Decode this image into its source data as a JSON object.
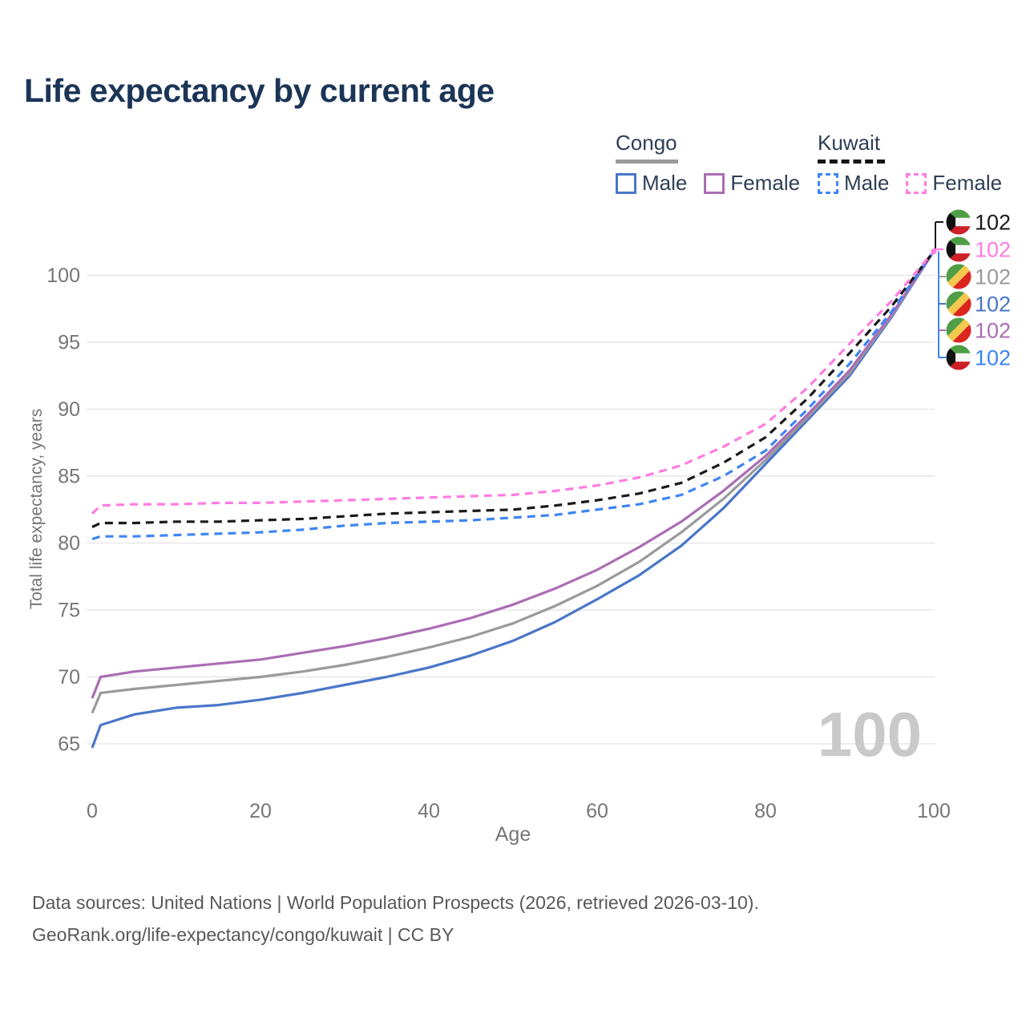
{
  "title": "Life expectancy by current age",
  "legend": {
    "groups": [
      {
        "name": "Congo",
        "line_style": "solid",
        "items": [
          {
            "label": "Male",
            "series": "congo_male",
            "color": "#4a76c9"
          },
          {
            "label": "Female",
            "series": "congo_female",
            "color": "#ab6db4"
          }
        ]
      },
      {
        "name": "Kuwait",
        "line_style": "dashed",
        "items": [
          {
            "label": "Male",
            "series": "kuwait_male",
            "color": "#3d85f4"
          },
          {
            "label": "Female",
            "series": "kuwait_female",
            "color": "#ff7ce0"
          }
        ]
      }
    ]
  },
  "chart_data": {
    "type": "line",
    "title": "Life expectancy by current age",
    "xlabel": "Age",
    "ylabel": "Total life expectancy, years",
    "xlim": [
      0,
      100
    ],
    "ylim": [
      63.5,
      103
    ],
    "xticks": [
      0,
      20,
      40,
      60,
      80,
      100
    ],
    "yticks": [
      65,
      70,
      75,
      80,
      85,
      90,
      95,
      100
    ],
    "grid": true,
    "legend_position": "top-right",
    "watermark": "100",
    "x": [
      0,
      1,
      5,
      10,
      15,
      20,
      25,
      30,
      35,
      40,
      45,
      50,
      55,
      60,
      65,
      70,
      75,
      80,
      85,
      90,
      95,
      100
    ],
    "series": [
      {
        "id": "congo_male",
        "name": "Congo Male",
        "color": "#4a76c9",
        "dash": false,
        "values": [
          64.7,
          66.4,
          67.2,
          67.7,
          67.9,
          68.3,
          68.8,
          69.4,
          70.0,
          70.7,
          71.6,
          72.7,
          74.1,
          75.8,
          77.6,
          79.8,
          82.6,
          85.9,
          89.2,
          92.5,
          96.9,
          101.8
        ]
      },
      {
        "id": "congo_total",
        "name": "Congo Both sexes",
        "color": "#9a9a9a",
        "dash": false,
        "values": [
          67.3,
          68.8,
          69.1,
          69.4,
          69.7,
          70.0,
          70.4,
          70.9,
          71.5,
          72.2,
          73.0,
          74.0,
          75.3,
          76.8,
          78.6,
          80.8,
          83.3,
          86.2,
          89.4,
          92.7,
          97.0,
          101.8
        ]
      },
      {
        "id": "congo_female",
        "name": "Congo Female",
        "color": "#ab6db4",
        "dash": false,
        "values": [
          68.4,
          70.0,
          70.4,
          70.7,
          71.0,
          71.3,
          71.8,
          72.3,
          72.9,
          73.6,
          74.4,
          75.4,
          76.6,
          78.0,
          79.7,
          81.6,
          83.9,
          86.5,
          89.6,
          92.9,
          97.1,
          101.8
        ]
      },
      {
        "id": "kuwait_male",
        "name": "Kuwait Male",
        "color": "#3d85f4",
        "dash": true,
        "values": [
          80.3,
          80.5,
          80.5,
          80.6,
          80.7,
          80.8,
          81.0,
          81.3,
          81.5,
          81.6,
          81.7,
          81.9,
          82.1,
          82.5,
          82.9,
          83.6,
          85.0,
          86.9,
          90.0,
          93.4,
          97.3,
          101.8
        ]
      },
      {
        "id": "kuwait_total",
        "name": "Kuwait Both sexes",
        "color": "#1a1a1a",
        "dash": true,
        "values": [
          81.2,
          81.5,
          81.5,
          81.6,
          81.6,
          81.7,
          81.8,
          82.0,
          82.2,
          82.3,
          82.4,
          82.5,
          82.8,
          83.2,
          83.7,
          84.5,
          86.0,
          87.9,
          90.8,
          94.2,
          97.7,
          101.8
        ]
      },
      {
        "id": "kuwait_female",
        "name": "Kuwait Female",
        "color": "#ff7ce0",
        "dash": true,
        "values": [
          82.2,
          82.8,
          82.9,
          82.9,
          83.0,
          83.0,
          83.1,
          83.2,
          83.3,
          83.4,
          83.5,
          83.6,
          83.9,
          84.3,
          84.9,
          85.8,
          87.2,
          88.9,
          91.6,
          94.9,
          98.1,
          101.8
        ]
      }
    ],
    "end_labels": [
      {
        "value": "102",
        "series": "kuwait_total",
        "flag": "kuwait",
        "color": "#1a1a1a"
      },
      {
        "value": "102",
        "series": "kuwait_female",
        "flag": "kuwait",
        "color": "#ff7ce0"
      },
      {
        "value": "102",
        "series": "congo_total",
        "flag": "congo",
        "color": "#9a9a9a"
      },
      {
        "value": "102",
        "series": "congo_male",
        "flag": "congo",
        "color": "#4a76c9"
      },
      {
        "value": "102",
        "series": "congo_female",
        "flag": "congo",
        "color": "#ab6db4"
      },
      {
        "value": "102",
        "series": "kuwait_male",
        "flag": "kuwait",
        "color": "#3d85f4"
      }
    ]
  },
  "footer": {
    "line1": "Data sources: United Nations | World Population Prospects (2026, retrieved 2026-03-10).",
    "line2": "GeoRank.org/life-expectancy/congo/kuwait | CC BY"
  }
}
